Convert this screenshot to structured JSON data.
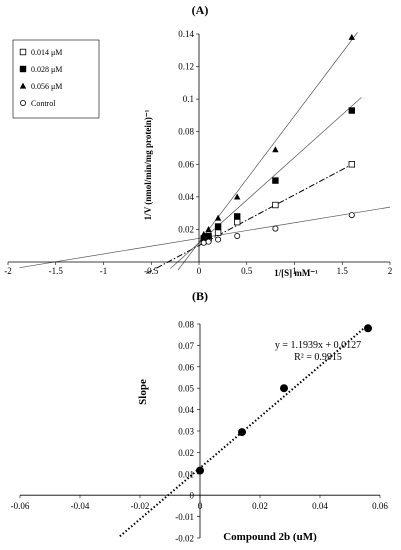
{
  "chart_data": [
    {
      "type": "scatter",
      "panel_label": "(A)",
      "xlabel": "1/[S] mM⁻¹",
      "ylabel": "1/V (nmol/min/mg protein)⁻¹",
      "xlim": [
        -2,
        2
      ],
      "ylim": [
        0,
        0.14
      ],
      "x_ticks": [
        "-2",
        "-1.5",
        "-1",
        "-0.5",
        "0",
        "0.5",
        "1",
        "1.5",
        "2"
      ],
      "y_ticks": [
        "0.02",
        "0.04",
        "0.06",
        "0.08",
        "0.1",
        "0.12",
        "0.14"
      ],
      "legend_position": "top-left",
      "grid": false,
      "series": [
        {
          "name": "0.014 μM",
          "marker": "open-square",
          "line": "dash-dot",
          "x": [
            0.05,
            0.1,
            0.2,
            0.4,
            0.8,
            1.6
          ],
          "y": [
            0.0128,
            0.0145,
            0.018,
            0.0245,
            0.035,
            0.06
          ],
          "line_x": [
            -0.55,
            1.62
          ],
          "line_y": [
            -0.007,
            0.0605
          ]
        },
        {
          "name": "0.028 μM",
          "marker": "filled-square",
          "line": "solid",
          "x": [
            0.05,
            0.1,
            0.2,
            0.4,
            0.8,
            1.6
          ],
          "y": [
            0.0145,
            0.016,
            0.0218,
            0.028,
            0.05,
            0.093
          ],
          "line_x": [
            -0.3,
            1.7
          ],
          "line_y": [
            -0.004,
            0.101
          ]
        },
        {
          "name": "0.056 μM",
          "marker": "filled-triangle",
          "line": "solid",
          "x": [
            0.05,
            0.1,
            0.2,
            0.4,
            0.8,
            1.6
          ],
          "y": [
            0.017,
            0.02,
            0.027,
            0.04,
            0.069,
            0.138
          ],
          "line_x": [
            -0.22,
            1.66
          ],
          "line_y": [
            -0.005,
            0.141
          ]
        },
        {
          "name": "Control",
          "marker": "open-circle",
          "line": "solid",
          "x": [
            0.05,
            0.1,
            0.2,
            0.4,
            0.8,
            1.6
          ],
          "y": [
            0.0118,
            0.0125,
            0.0138,
            0.016,
            0.0205,
            0.0288
          ],
          "line_x": [
            -1.88,
            2
          ],
          "line_y": [
            -0.0035,
            0.0337
          ]
        }
      ]
    },
    {
      "type": "scatter",
      "panel_label": "(B)",
      "xlabel": "Compound 2b (uM)",
      "ylabel": "Slope",
      "xlim": [
        -0.06,
        0.06
      ],
      "ylim": [
        -0.02,
        0.08
      ],
      "x_ticks": [
        "-0.06",
        "-0.04",
        "-0.02",
        "0",
        "0.02",
        "0.04",
        "0.06"
      ],
      "y_ticks": [
        "-0.02",
        "-0.01",
        "0",
        "0.01",
        "0.02",
        "0.03",
        "0.04",
        "0.05",
        "0.06",
        "0.07",
        "0.08"
      ],
      "annotation_equation": "y = 1.1939x + 0.0127",
      "annotation_r2": "R² = 0.9915",
      "grid": false,
      "series": [
        {
          "marker": "filled-circle",
          "line": "dotted",
          "x": [
            0,
            0.014,
            0.028,
            0.056
          ],
          "y": [
            0.0115,
            0.0295,
            0.05,
            0.078
          ],
          "line_x": [
            -0.0267,
            0.056
          ],
          "line_y": [
            -0.0192,
            0.0796
          ]
        }
      ]
    }
  ]
}
